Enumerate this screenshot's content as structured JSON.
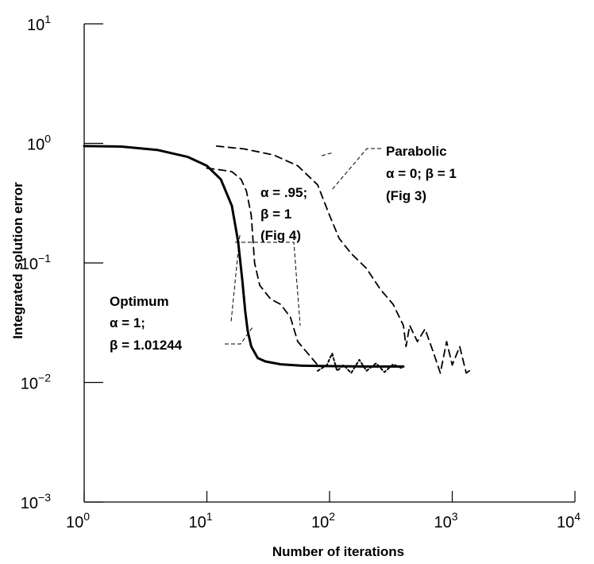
{
  "chart_data": {
    "type": "line",
    "title": "",
    "xlabel": "Number of iterations",
    "ylabel": "Integrated solution error",
    "x_scale": "log",
    "y_scale": "log",
    "xlim": [
      1,
      10000
    ],
    "ylim": [
      0.001,
      10
    ],
    "grid": false,
    "x_ticks": [
      {
        "base": "10",
        "exp": "0"
      },
      {
        "base": "10",
        "exp": "1"
      },
      {
        "base": "10",
        "exp": "2"
      },
      {
        "base": "10",
        "exp": "3"
      },
      {
        "base": "10",
        "exp": "4"
      }
    ],
    "y_ticks": [
      {
        "base": "10",
        "exp": "1"
      },
      {
        "base": "10",
        "exp": "0"
      },
      {
        "base": "10",
        "exp": "−1"
      },
      {
        "base": "10",
        "exp": "−2"
      },
      {
        "base": "10",
        "exp": "−3"
      }
    ],
    "series": [
      {
        "style": "solid",
        "x": [
          1,
          2,
          4,
          7,
          10,
          13,
          16,
          18,
          19.5,
          20.5,
          21.5,
          23,
          26,
          30,
          40,
          60,
          100,
          200,
          400
        ],
        "y": [
          0.95,
          0.94,
          0.88,
          0.77,
          0.65,
          0.5,
          0.3,
          0.15,
          0.07,
          0.04,
          0.027,
          0.02,
          0.016,
          0.015,
          0.0142,
          0.0138,
          0.0137,
          0.0136,
          0.0136
        ]
      },
      {
        "style": "dashed",
        "x": [
          10,
          13,
          16,
          19,
          21,
          23,
          24.5,
          27,
          33,
          40,
          48,
          55,
          65,
          80
        ],
        "y": [
          0.62,
          0.6,
          0.58,
          0.5,
          0.4,
          0.25,
          0.1,
          0.065,
          0.05,
          0.045,
          0.035,
          0.022,
          0.018,
          0.014
        ]
      },
      {
        "style": "dashed",
        "x": [
          12,
          20,
          35,
          55,
          80,
          100,
          120,
          150,
          200,
          260,
          330,
          400,
          420,
          450,
          520,
          600,
          700,
          800,
          900,
          1000,
          1150,
          1300,
          1450
        ],
        "y": [
          0.95,
          0.9,
          0.8,
          0.65,
          0.45,
          0.25,
          0.16,
          0.12,
          0.09,
          0.06,
          0.045,
          0.03,
          0.02,
          0.03,
          0.022,
          0.028,
          0.018,
          0.012,
          0.022,
          0.014,
          0.02,
          0.012,
          0.013
        ]
      },
      {
        "style": "dotted",
        "x": [
          80,
          95,
          105,
          115,
          130,
          150,
          175,
          200,
          240,
          280,
          330,
          400
        ],
        "y": [
          0.0125,
          0.014,
          0.0175,
          0.0125,
          0.014,
          0.012,
          0.0155,
          0.0125,
          0.0145,
          0.0122,
          0.0142,
          0.013
        ]
      }
    ],
    "annotations": [
      {
        "lines": [
          "Parabolic",
          "α = 0; β = 1",
          "(Fig 3)"
        ]
      },
      {
        "lines": [
          "α = .95;",
          "β = 1",
          "(Fig 4)"
        ]
      },
      {
        "lines": [
          "Optimum",
          "α = 1;",
          "β = 1.01244"
        ]
      }
    ]
  }
}
